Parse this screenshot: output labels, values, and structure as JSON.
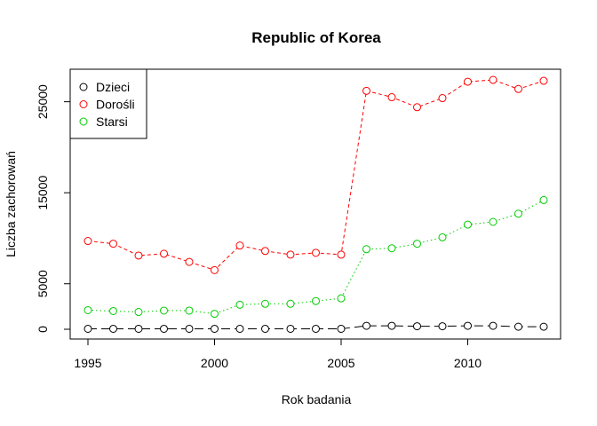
{
  "chart_data": {
    "type": "line",
    "title": "Republic of Korea",
    "xlabel": "Rok badania",
    "ylabel": "Liczba zachorowań",
    "xlim": [
      1995,
      2013
    ],
    "ylim": [
      0,
      27500
    ],
    "x_ticks": [
      1995,
      2000,
      2005,
      2010
    ],
    "y_ticks": [
      0,
      5000,
      15000,
      25000
    ],
    "legend_position": "top-left",
    "x": [
      1995,
      1996,
      1997,
      1998,
      1999,
      2000,
      2001,
      2002,
      2003,
      2004,
      2005,
      2006,
      2007,
      2008,
      2009,
      2010,
      2011,
      2012,
      2013
    ],
    "series": [
      {
        "name": "Dzieci",
        "color": "#000000",
        "line_style": "longdash",
        "values": [
          50,
          50,
          50,
          50,
          50,
          50,
          50,
          50,
          50,
          50,
          50,
          380,
          380,
          330,
          330,
          380,
          380,
          280,
          280
        ]
      },
      {
        "name": "Dorośli",
        "color": "#ff0000",
        "line_style": "dashed",
        "values": [
          9700,
          9400,
          8100,
          8300,
          7400,
          6500,
          9200,
          8600,
          8200,
          8400,
          8200,
          26200,
          25500,
          24400,
          25400,
          27200,
          27400,
          26400,
          27300
        ]
      },
      {
        "name": "Starsi",
        "color": "#00cd00",
        "line_style": "dotted",
        "values": [
          2100,
          2000,
          1900,
          2050,
          2050,
          1700,
          2700,
          2800,
          2800,
          3100,
          3400,
          8800,
          8900,
          9400,
          10100,
          11500,
          11800,
          12700,
          14200
        ]
      }
    ]
  }
}
